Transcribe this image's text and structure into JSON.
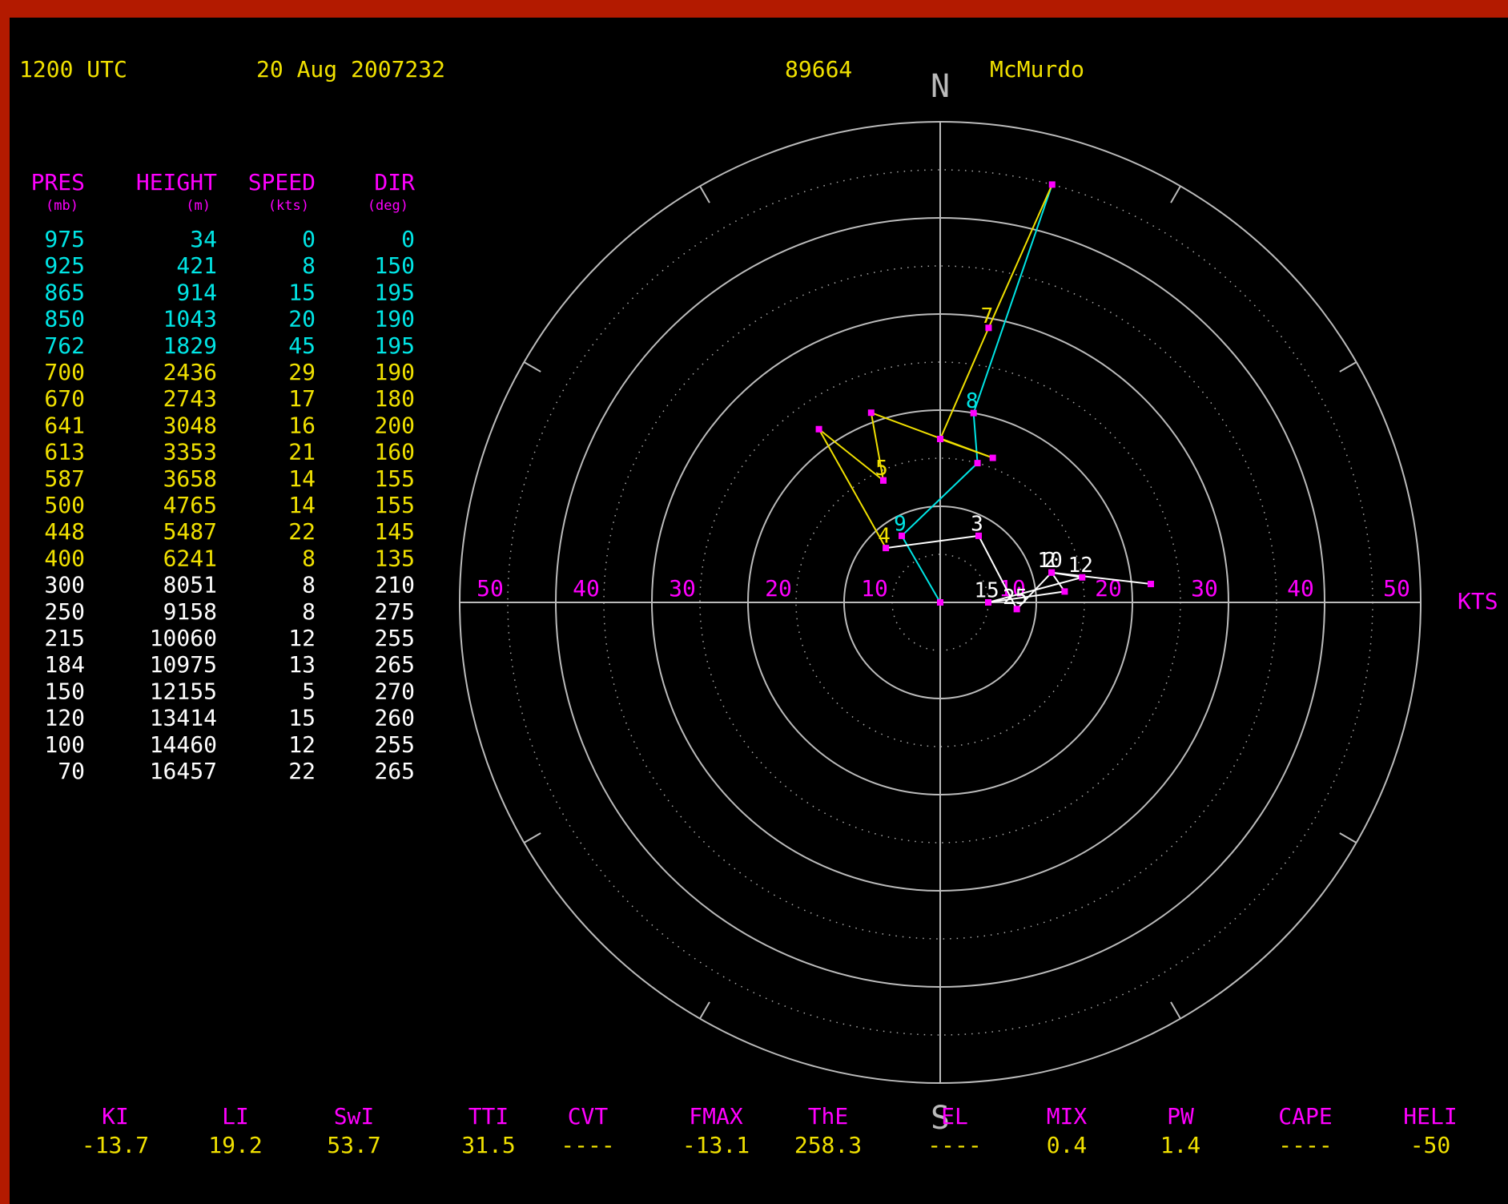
{
  "header": {
    "time": "1200 UTC",
    "date": "20 Aug 2007232",
    "station_id": "89664",
    "station": "McMurdo"
  },
  "table_headers": [
    {
      "name": "PRES",
      "unit": "(mb)"
    },
    {
      "name": "HEIGHT",
      "unit": "(m)"
    },
    {
      "name": "SPEED",
      "unit": "(kts)"
    },
    {
      "name": "DIR",
      "unit": "(deg)"
    }
  ],
  "chart_data": {
    "type": "hodograph",
    "north_label": "N",
    "south_label": "S",
    "unit_label": "KTS",
    "rlim": [
      0,
      50
    ],
    "rings": [
      10,
      20,
      30,
      40,
      50
    ],
    "minor_ring_step": 5,
    "point_color": "#ff00ff",
    "groups": [
      {
        "color": "#00e5e5",
        "rows": [
          {
            "pres": 975,
            "height": 34,
            "speed": 0,
            "dir": 0
          },
          {
            "pres": 925,
            "height": 421,
            "speed": 8,
            "dir": 150,
            "label": "9"
          },
          {
            "pres": 865,
            "height": 914,
            "speed": 15,
            "dir": 195
          },
          {
            "pres": 850,
            "height": 1043,
            "speed": 20,
            "dir": 190,
            "label": "8"
          },
          {
            "pres": 762,
            "height": 1829,
            "speed": 45,
            "dir": 195
          }
        ]
      },
      {
        "color": "#f0e000",
        "rows": [
          {
            "pres": 700,
            "height": 2436,
            "speed": 29,
            "dir": 190,
            "label": "7"
          },
          {
            "pres": 670,
            "height": 2743,
            "speed": 17,
            "dir": 180
          },
          {
            "pres": 641,
            "height": 3048,
            "speed": 16,
            "dir": 200
          },
          {
            "pres": 613,
            "height": 3353,
            "speed": 21,
            "dir": 160
          },
          {
            "pres": 587,
            "height": 3658,
            "speed": 14,
            "dir": 155
          },
          {
            "pres": 500,
            "height": 4765,
            "speed": 14,
            "dir": 155,
            "label": "5"
          },
          {
            "pres": 448,
            "height": 5487,
            "speed": 22,
            "dir": 145
          },
          {
            "pres": 400,
            "height": 6241,
            "speed": 8,
            "dir": 135,
            "label": "4"
          }
        ]
      },
      {
        "color": "#ffffff",
        "rows": [
          {
            "pres": 300,
            "height": 8051,
            "speed": 8,
            "dir": 210,
            "label": "3"
          },
          {
            "pres": 250,
            "height": 9158,
            "speed": 8,
            "dir": 275,
            "label": "25"
          },
          {
            "pres": 215,
            "height": 10060,
            "speed": 12,
            "dir": 255,
            "label": "2"
          },
          {
            "pres": 184,
            "height": 10975,
            "speed": 13,
            "dir": 265
          },
          {
            "pres": 150,
            "height": 12155,
            "speed": 5,
            "dir": 270,
            "label": "15"
          },
          {
            "pres": 120,
            "height": 13414,
            "speed": 15,
            "dir": 260,
            "label": "12"
          },
          {
            "pres": 100,
            "height": 14460,
            "speed": 12,
            "dir": 255,
            "label": "10"
          },
          {
            "pres": 70,
            "height": 16457,
            "speed": 22,
            "dir": 265
          }
        ]
      }
    ]
  },
  "indices": [
    {
      "name": "KI",
      "value": -13.7
    },
    {
      "name": "LI",
      "value": 19.2
    },
    {
      "name": "SwI",
      "value": 53.7
    },
    {
      "name": "TTI",
      "value": 31.5
    },
    {
      "name": "CVT",
      "value": "----"
    },
    {
      "name": "FMAX",
      "value": -13.1
    },
    {
      "name": "ThE",
      "value": 258.3
    },
    {
      "name": "EL",
      "value": "----"
    },
    {
      "name": "MIX",
      "value": 0.4
    },
    {
      "name": "PW",
      "value": 1.4
    },
    {
      "name": "CAPE",
      "value": "----"
    },
    {
      "name": "HELI",
      "value": -50
    }
  ]
}
